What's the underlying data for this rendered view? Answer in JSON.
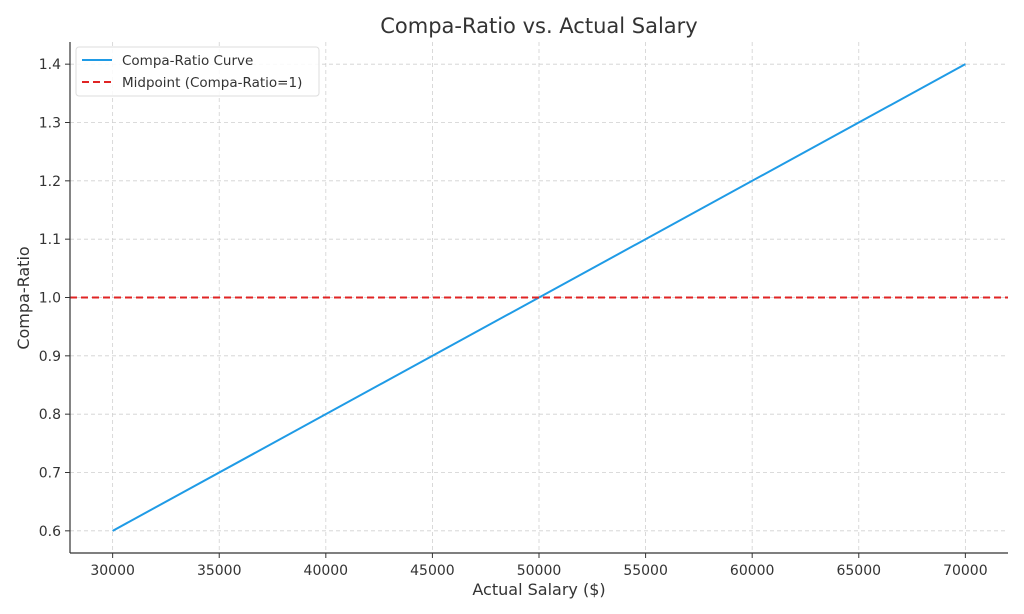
{
  "chart_data": {
    "type": "line",
    "title": "Compa-Ratio vs. Actual Salary",
    "xlabel": "Actual Salary ($)",
    "ylabel": "Compa-Ratio",
    "xlim": [
      28000,
      72000
    ],
    "ylim": [
      0.562,
      1.438
    ],
    "xticks": [
      30000,
      35000,
      40000,
      45000,
      50000,
      55000,
      60000,
      65000,
      70000
    ],
    "yticks": [
      0.6,
      0.7,
      0.8,
      0.9,
      1.0,
      1.1,
      1.2,
      1.3,
      1.4
    ],
    "grid": true,
    "legend_placement": "upper-left",
    "series": [
      {
        "name": "Compa-Ratio Curve",
        "style": "solid",
        "color": "#1f9be6",
        "x": [
          30000,
          70000
        ],
        "y": [
          0.6,
          1.4
        ]
      },
      {
        "name": "Midpoint (Compa-Ratio=1)",
        "style": "dashed",
        "color": "#e02424",
        "hline": 1.0
      }
    ]
  }
}
